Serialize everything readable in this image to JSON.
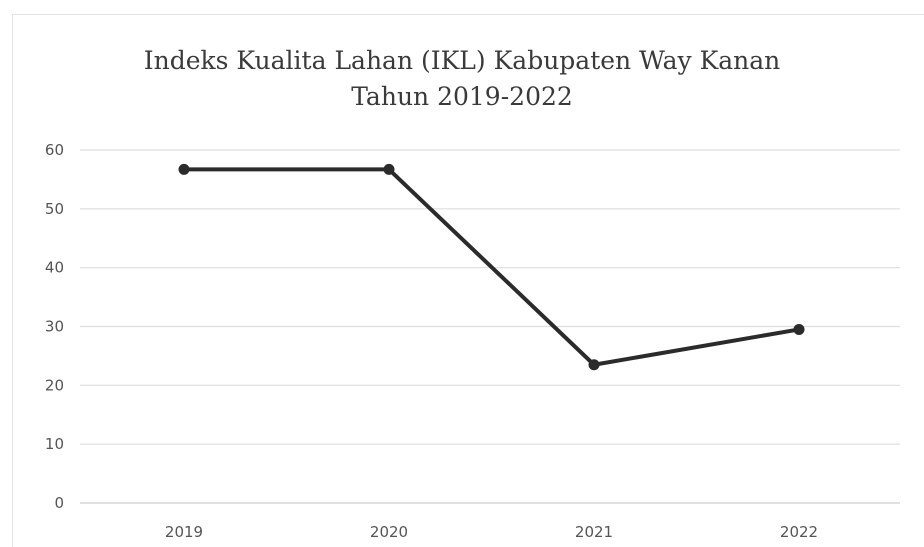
{
  "chart_data": {
    "type": "line",
    "title": [
      "Indeks Kualita Lahan (IKL) Kabupaten Way Kanan",
      "Tahun 2019-2022"
    ],
    "categories": [
      "2019",
      "2020",
      "2021",
      "2022"
    ],
    "series": [
      {
        "values": [
          56.7,
          56.7,
          23.5,
          29.5
        ],
        "color": "#2b2b2b"
      }
    ],
    "xlabel": "",
    "ylabel": "",
    "ylim": [
      0,
      60
    ],
    "yticks": [
      "0",
      "10",
      "20",
      "30",
      "40",
      "50",
      "60"
    ],
    "grid": true,
    "legend": "none"
  }
}
